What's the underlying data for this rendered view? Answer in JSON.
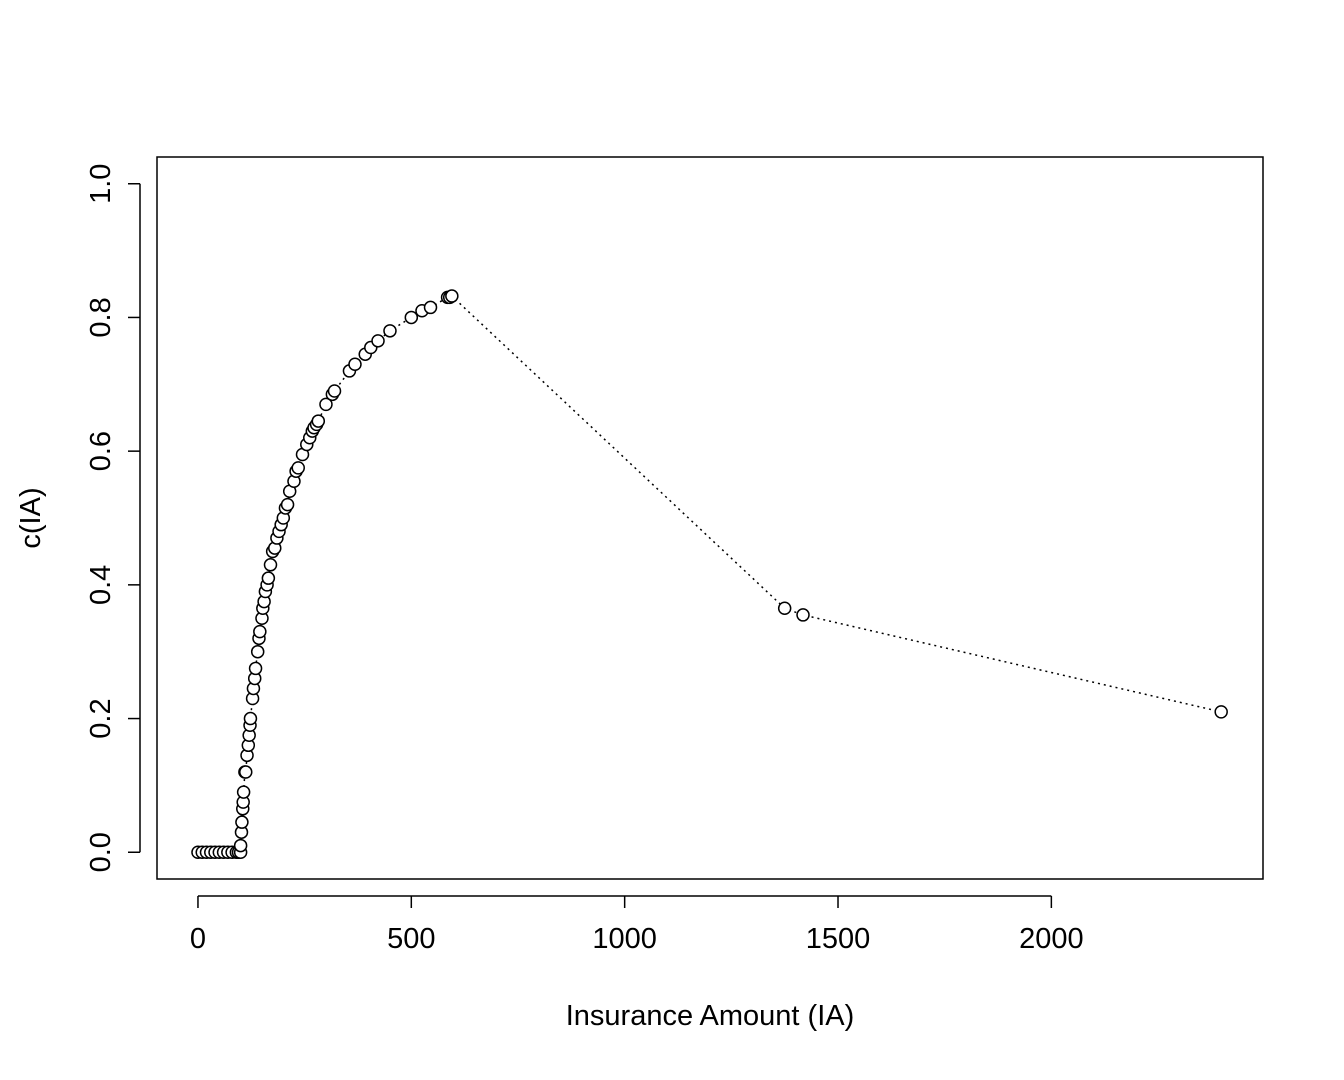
{
  "chart_data": {
    "type": "scatter",
    "x_label": "Insurance Amount (IA)",
    "y_label": "c(IA)",
    "x": [
      0,
      10,
      20,
      30,
      40,
      50,
      60,
      70,
      80,
      90,
      95,
      100,
      100,
      102,
      103,
      105,
      106,
      107,
      110,
      112,
      115,
      118,
      120,
      122,
      123,
      128,
      130,
      133,
      135,
      140,
      143,
      145,
      150,
      152,
      155,
      158,
      162,
      165,
      170,
      175,
      180,
      185,
      190,
      195,
      200,
      205,
      210,
      215,
      225,
      230,
      235,
      245,
      255,
      262,
      268,
      272,
      278,
      282,
      300,
      315,
      320,
      355,
      368,
      392,
      405,
      422,
      450,
      500,
      525,
      545,
      585,
      590,
      595,
      1375,
      1418,
      2398
    ],
    "series": [
      {
        "color": "#000000",
        "values": [
          0,
          0,
          0,
          0,
          0,
          0,
          0,
          0,
          0,
          0,
          0,
          0,
          0.01,
          0.03,
          0.045,
          0.065,
          0.075,
          0.09,
          0.12,
          0.12,
          0.145,
          0.16,
          0.175,
          0.19,
          0.2,
          0.23,
          0.245,
          0.26,
          0.275,
          0.3,
          0.32,
          0.33,
          0.35,
          0.365,
          0.375,
          0.39,
          0.4,
          0.41,
          0.43,
          0.45,
          0.455,
          0.47,
          0.48,
          0.49,
          0.5,
          0.515,
          0.52,
          0.54,
          0.555,
          0.57,
          0.575,
          0.595,
          0.61,
          0.62,
          0.63,
          0.635,
          0.64,
          0.645,
          0.67,
          0.685,
          0.69,
          0.72,
          0.73,
          0.745,
          0.755,
          0.765,
          0.78,
          0.8,
          0.81,
          0.815,
          0.83,
          0.83,
          0.832,
          0.365,
          0.355,
          0.21
        ]
      }
    ],
    "line_style": "dotted",
    "xlim": [
      -96,
      2496
    ],
    "xticks": [
      0,
      500,
      1000,
      1500,
      2000
    ],
    "ylim": [
      -0.04,
      1.04
    ],
    "yticks": [
      {
        "value": 0,
        "label": "0.0"
      },
      {
        "value": 0.2,
        "label": "0.2"
      },
      {
        "value": 0.4,
        "label": "0.4"
      },
      {
        "value": 0.6,
        "label": "0.6"
      },
      {
        "value": 0.8,
        "label": "0.8"
      },
      {
        "value": 1,
        "label": "1.0"
      }
    ]
  }
}
